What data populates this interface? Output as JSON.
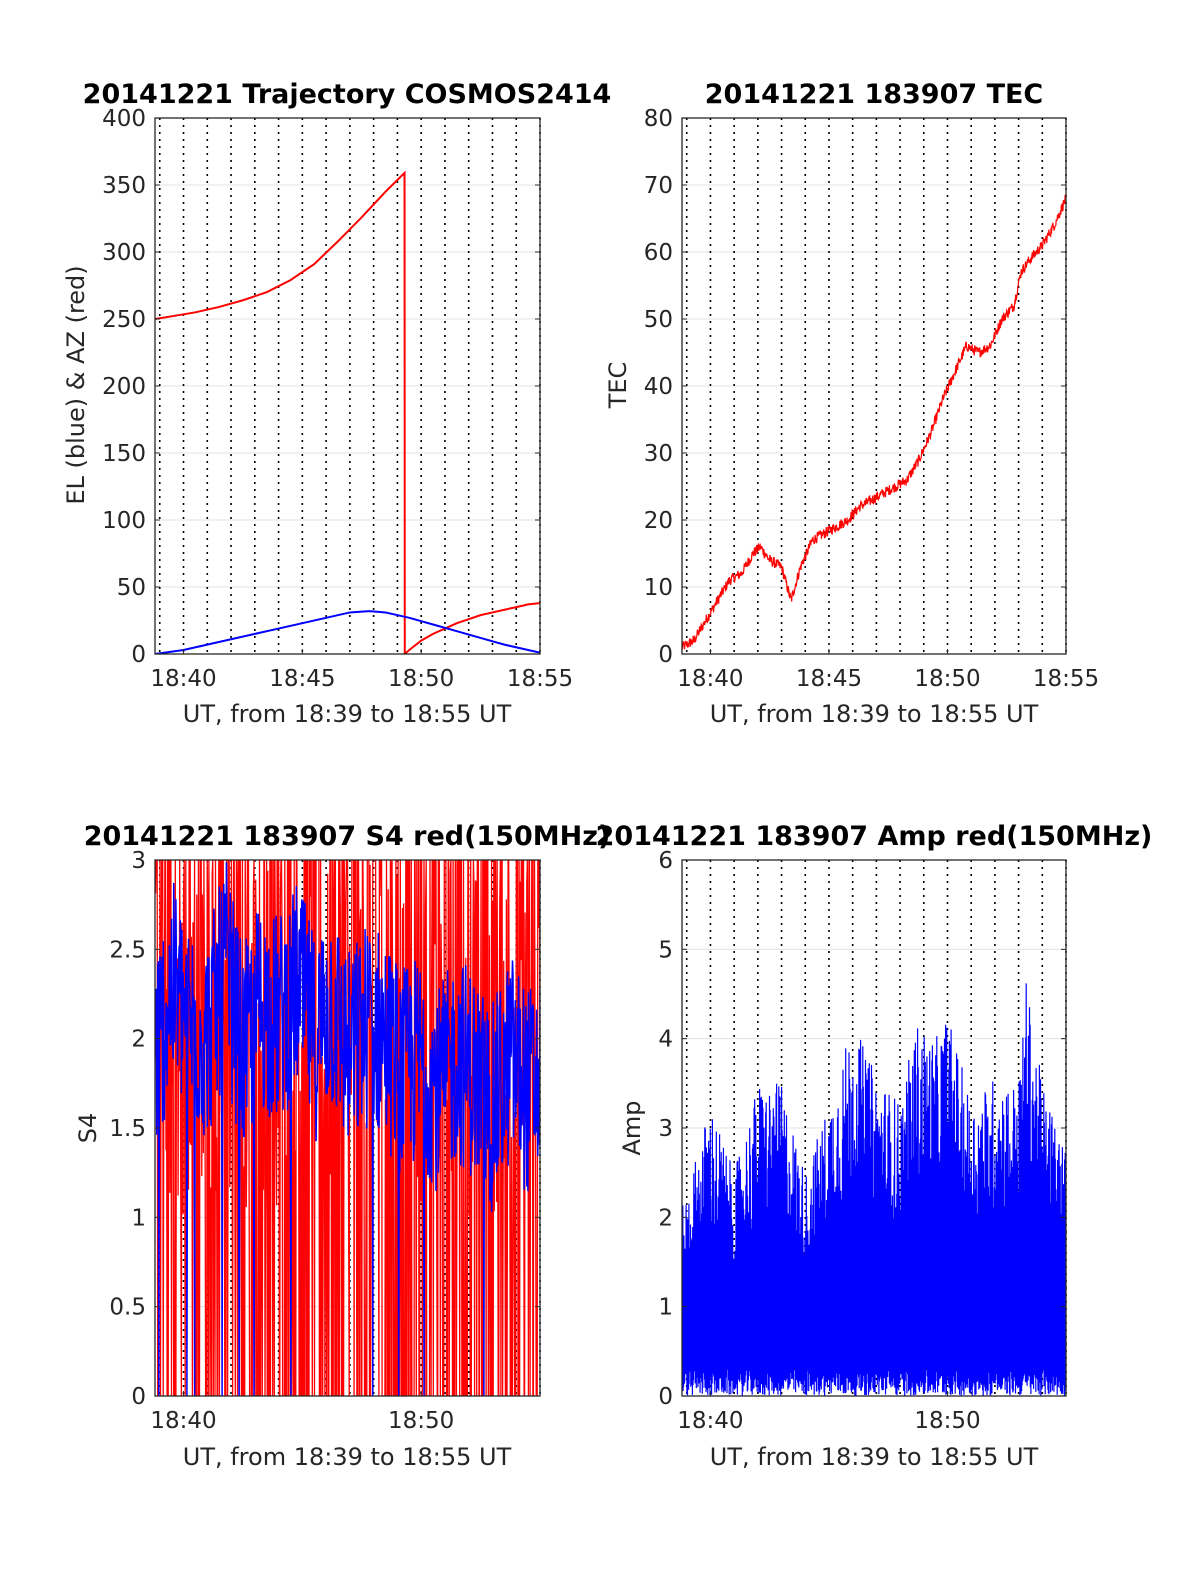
{
  "figure": {
    "background": "#ffffff"
  },
  "chart_data": [
    {
      "type": "line",
      "title": "20141221 Trajectory COSMOS2414",
      "xlabel": "UT, from 18:39 to 18:55 UT",
      "ylabel": "EL (blue) & AZ (red)",
      "xlim": [
        38.8,
        55
      ],
      "ylim": [
        0,
        400
      ],
      "grid": true,
      "xticks": [
        40,
        45,
        50,
        55
      ],
      "xticklabels": [
        "18:40",
        "18:45",
        "18:50",
        "18:55"
      ],
      "yticks": [
        0,
        50,
        100,
        150,
        200,
        250,
        300,
        350,
        400
      ],
      "yticklabels": [
        "0",
        "50",
        "100",
        "150",
        "200",
        "250",
        "300",
        "350",
        "400"
      ],
      "series": [
        {
          "name": "AZ",
          "color": "#ff0000",
          "x": [
            38.8,
            39.5,
            40.5,
            41.5,
            42.5,
            43.5,
            44.5,
            45.5,
            46.5,
            47.5,
            48.5,
            49.3,
            49.31,
            49.5,
            50,
            50.5,
            51,
            51.5,
            52,
            52.5,
            53,
            53.5,
            54,
            54.5,
            55
          ],
          "y": [
            250,
            252,
            255,
            259,
            264,
            270,
            279,
            291,
            308,
            326,
            345,
            359,
            0,
            3,
            10,
            15,
            19,
            23,
            26,
            29,
            31,
            33,
            35,
            37,
            38
          ]
        },
        {
          "name": "EL",
          "color": "#0000ff",
          "x": [
            38.8,
            40,
            41,
            42,
            43,
            44,
            45,
            46,
            47,
            47.8,
            48.5,
            49.5,
            50.5,
            51.5,
            52.5,
            53.5,
            54.5,
            55
          ],
          "y": [
            0,
            3,
            7,
            11,
            15,
            19,
            23,
            27,
            31,
            32,
            31,
            27,
            22,
            17,
            12,
            7,
            3,
            1
          ]
        }
      ]
    },
    {
      "type": "line",
      "title": "20141221 183907 TEC",
      "xlabel": "UT, from 18:39 to 18:55 UT",
      "ylabel": "TEC",
      "xlim": [
        38.8,
        55
      ],
      "ylim": [
        0,
        80
      ],
      "grid": true,
      "xticks": [
        40,
        45,
        50,
        55
      ],
      "xticklabels": [
        "18:40",
        "18:45",
        "18:50",
        "18:55"
      ],
      "yticks": [
        0,
        10,
        20,
        30,
        40,
        50,
        60,
        70,
        80
      ],
      "yticklabels": [
        "0",
        "10",
        "20",
        "30",
        "40",
        "50",
        "60",
        "70",
        "80"
      ],
      "series": [
        {
          "name": "TEC",
          "color": "#ff0000",
          "x": [
            38.8,
            39.3,
            39.8,
            40.3,
            40.8,
            41.3,
            41.8,
            42.1,
            42.5,
            43,
            43.4,
            43.8,
            44.3,
            44.8,
            45.3,
            45.8,
            46.3,
            46.8,
            47.3,
            47.8,
            48.3,
            48.8,
            49.3,
            49.8,
            50.3,
            50.8,
            51.3,
            51.8,
            52.3,
            52.8,
            53.1,
            53.5,
            54,
            54.5,
            55
          ],
          "y": [
            1,
            2,
            5,
            8,
            11,
            12,
            15,
            16,
            14,
            13,
            8,
            13,
            17,
            18,
            19,
            20,
            22,
            23,
            24,
            25,
            26,
            29,
            33,
            38,
            42,
            46,
            45,
            46,
            50,
            52,
            57,
            59,
            61,
            64,
            68
          ]
        }
      ]
    },
    {
      "type": "line",
      "title": "20141221 183907 S4 red(150MHz)",
      "xlabel": "UT, from 18:39 to 18:55 UT",
      "ylabel": "S4",
      "xlim": [
        38.8,
        55
      ],
      "ylim": [
        0,
        3
      ],
      "grid": true,
      "xticks": [
        40,
        50
      ],
      "xticklabels": [
        "18:40",
        "18:50"
      ],
      "yticks": [
        0,
        0.5,
        1,
        1.5,
        2,
        2.5,
        3
      ],
      "yticklabels": [
        "0",
        "0.5",
        "1",
        "1.5",
        "2",
        "2.5",
        "3"
      ],
      "series": [
        {
          "name": "S4 red",
          "color": "#ff0000",
          "description_values": "dense noise spanning 0 to 3",
          "y_min": 0,
          "y_max": 3
        },
        {
          "name": "S4 blue",
          "color": "#0000ff",
          "x": [
            38.8,
            39.5,
            40.2,
            41,
            41.8,
            42.5,
            43.2,
            44,
            44.8,
            45.5,
            46.2,
            47,
            47.8,
            48.5,
            49.2,
            50,
            50.8,
            51.5,
            52.2,
            53,
            53.8,
            54.5,
            55
          ],
          "y": [
            1.9,
            2.3,
            2.1,
            2.0,
            2.4,
            1.9,
            2.2,
            2.1,
            2.3,
            2.0,
            2.2,
            1.9,
            2.1,
            2.0,
            1.8,
            1.9,
            1.7,
            1.9,
            1.8,
            1.6,
            1.9,
            1.7,
            1.8
          ]
        }
      ]
    },
    {
      "type": "line",
      "title": "20141221 183907 Amp red(150MHz)",
      "xlabel": "UT, from 18:39 to 18:55 UT",
      "ylabel": "Amp",
      "xlim": [
        38.8,
        55
      ],
      "ylim": [
        0,
        6
      ],
      "grid": true,
      "xticks": [
        40,
        50
      ],
      "xticklabels": [
        "18:40",
        "18:50"
      ],
      "yticks": [
        0,
        1,
        2,
        3,
        4,
        5,
        6
      ],
      "yticklabels": [
        "0",
        "1",
        "2",
        "3",
        "4",
        "5",
        "6"
      ],
      "series": [
        {
          "name": "Amp",
          "color": "#0000ff",
          "x": [
            38.8,
            40,
            41,
            42,
            43,
            44,
            45,
            46,
            47,
            48,
            48.7,
            49.5,
            50,
            51,
            52,
            53,
            53.3,
            54,
            55
          ],
          "y": [
            2.1,
            3.3,
            2.5,
            3.5,
            3.5,
            2.5,
            3.3,
            4.2,
            3.6,
            3.3,
            4.2,
            4.0,
            4.3,
            3.3,
            3.6,
            3.5,
            4.7,
            3.5,
            2.8
          ]
        }
      ]
    }
  ]
}
